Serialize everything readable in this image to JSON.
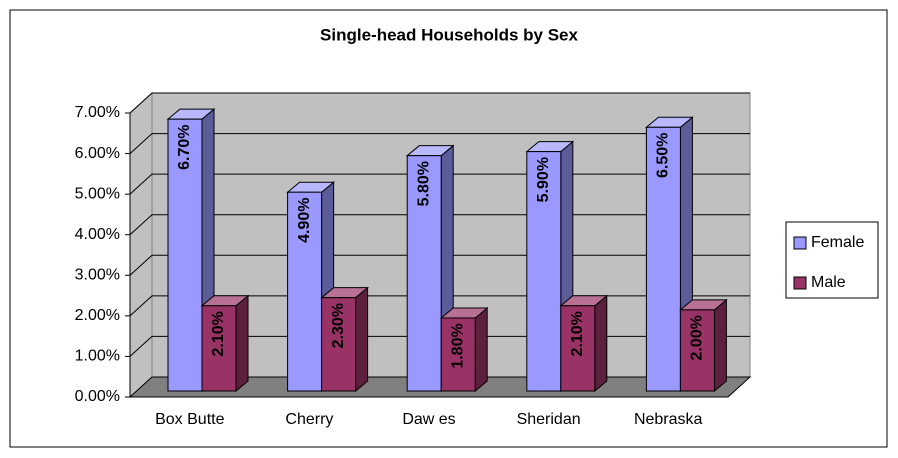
{
  "chart_data": {
    "type": "bar3d",
    "title": "Single-head Households by Sex",
    "categories": [
      "Box Butte",
      "Cherry",
      "Daw es",
      "Sheridan",
      "Nebraska"
    ],
    "series": [
      {
        "name": "Female",
        "color": "#9999ff",
        "values": [
          6.7,
          4.9,
          5.8,
          5.9,
          6.5
        ],
        "value_labels": [
          "6.70%",
          "4.90%",
          "5.80%",
          "5.90%",
          "6.50%"
        ]
      },
      {
        "name": "Male",
        "color": "#993366",
        "values": [
          2.1,
          2.3,
          1.8,
          2.1,
          2.0
        ],
        "value_labels": [
          "2.10%",
          "2.30%",
          "1.80%",
          "2.10%",
          "2.00%"
        ]
      }
    ],
    "ylim": [
      0,
      7
    ],
    "yticks": [
      {
        "value": 0,
        "label": "0.00%"
      },
      {
        "value": 1,
        "label": "1.00%"
      },
      {
        "value": 2,
        "label": "2.00%"
      },
      {
        "value": 3,
        "label": "3.00%"
      },
      {
        "value": 4,
        "label": "4.00%"
      },
      {
        "value": 5,
        "label": "5.00%"
      },
      {
        "value": 6,
        "label": "6.00%"
      },
      {
        "value": 7,
        "label": "7.00%"
      }
    ],
    "grid": true,
    "legend": "right"
  }
}
